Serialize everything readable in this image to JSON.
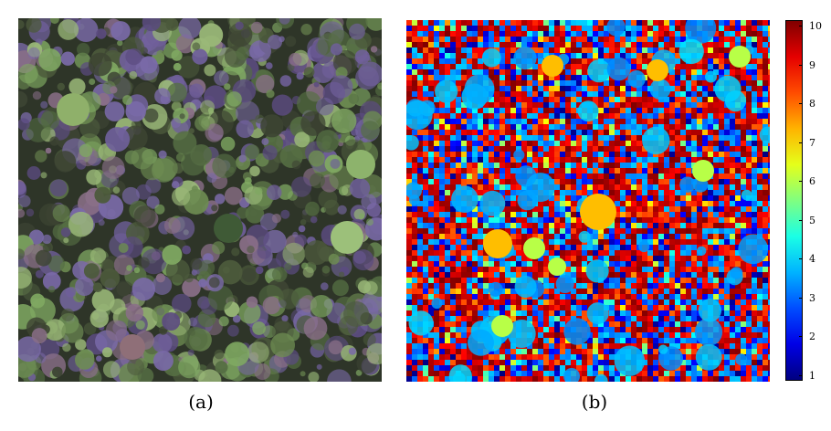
{
  "panels": {
    "a": {
      "caption": "(a)",
      "content": "aerial-forest-canopy"
    },
    "b": {
      "caption": "(b)",
      "content": "classification-map"
    }
  },
  "colorbar": {
    "ticks": [
      "1",
      "2",
      "3",
      "4",
      "5",
      "6",
      "7",
      "8",
      "9",
      "10"
    ],
    "min": 1,
    "max": 10,
    "colormap": "jet"
  },
  "colors": {
    "canopy_purple": "#6a5a8e",
    "canopy_green": "#6a8f55",
    "canopy_dark": "#2e3528"
  }
}
